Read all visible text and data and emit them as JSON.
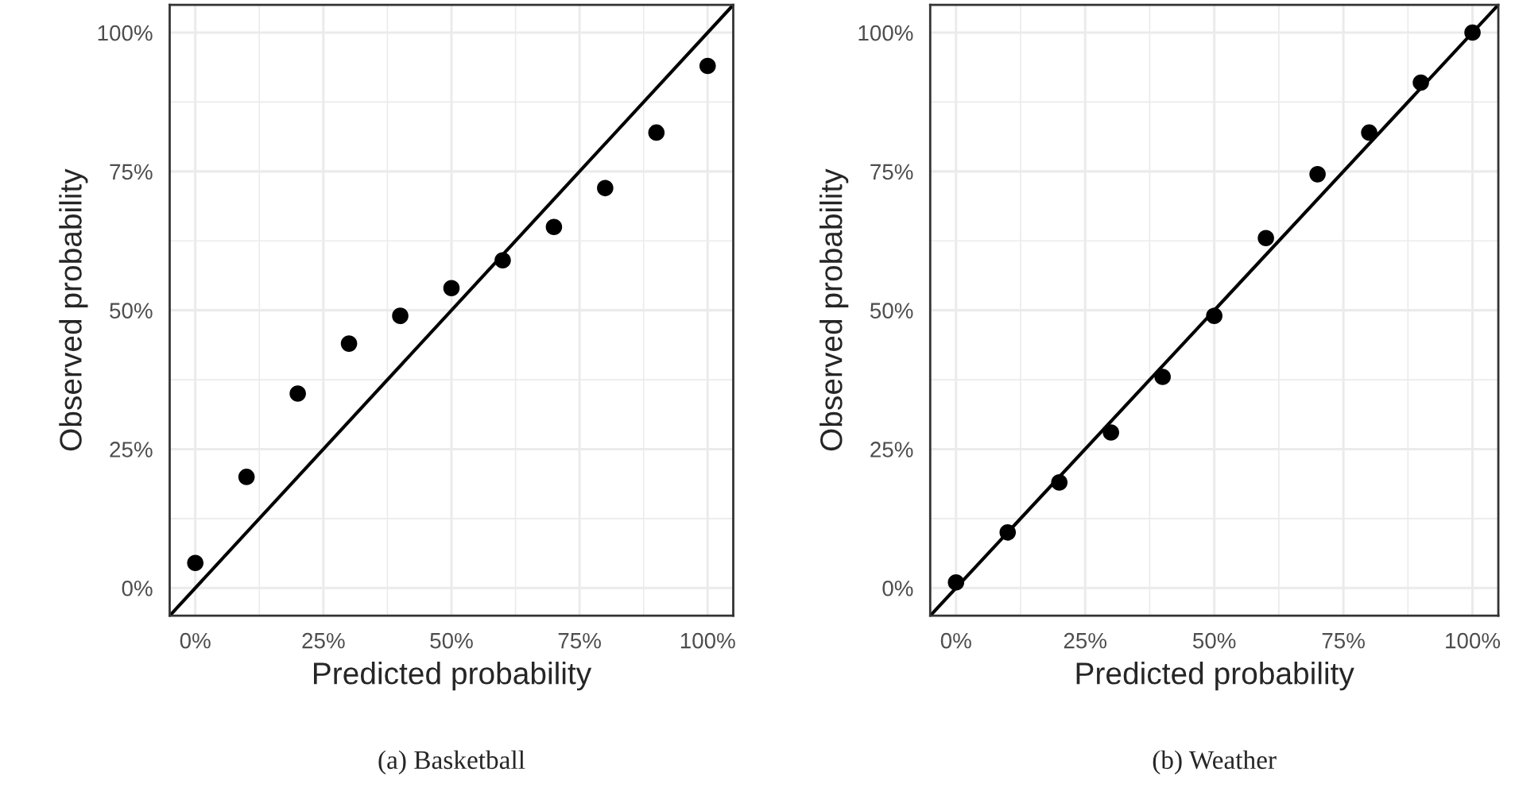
{
  "chart_data": [
    {
      "type": "scatter",
      "xlabel": "Predicted probability",
      "ylabel": "Observed probability",
      "annotations": [
        "(a) Basketball"
      ],
      "xlim": [
        -5,
        105
      ],
      "ylim": [
        -5,
        105
      ],
      "xticks": [
        {
          "value": 0,
          "label": "0%"
        },
        {
          "value": 25,
          "label": "25%"
        },
        {
          "value": 50,
          "label": "50%"
        },
        {
          "value": 75,
          "label": "75%"
        },
        {
          "value": 100,
          "label": "100%"
        }
      ],
      "yticks": [
        {
          "value": 0,
          "label": "0%"
        },
        {
          "value": 25,
          "label": "25%"
        },
        {
          "value": 50,
          "label": "50%"
        },
        {
          "value": 75,
          "label": "75%"
        },
        {
          "value": 100,
          "label": "100%"
        }
      ],
      "grid": true,
      "legend": false,
      "series": [
        {
          "marker": "circle",
          "color": "#000000",
          "x": [
            0,
            10,
            20,
            30,
            40,
            50,
            60,
            70,
            80,
            90,
            100
          ],
          "values": [
            4.5,
            20,
            35,
            44,
            49,
            54,
            59,
            65,
            72,
            82,
            94
          ]
        },
        {
          "type": "line",
          "color": "#000000",
          "x": [
            -5,
            105
          ],
          "values": [
            -5,
            105
          ]
        }
      ]
    },
    {
      "type": "scatter",
      "xlabel": "Predicted probability",
      "ylabel": "Observed probability",
      "annotations": [
        "(b) Weather"
      ],
      "xlim": [
        -5,
        105
      ],
      "ylim": [
        -5,
        105
      ],
      "xticks": [
        {
          "value": 0,
          "label": "0%"
        },
        {
          "value": 25,
          "label": "25%"
        },
        {
          "value": 50,
          "label": "50%"
        },
        {
          "value": 75,
          "label": "75%"
        },
        {
          "value": 100,
          "label": "100%"
        }
      ],
      "yticks": [
        {
          "value": 0,
          "label": "0%"
        },
        {
          "value": 25,
          "label": "25%"
        },
        {
          "value": 50,
          "label": "50%"
        },
        {
          "value": 75,
          "label": "75%"
        },
        {
          "value": 100,
          "label": "100%"
        }
      ],
      "grid": true,
      "legend": false,
      "series": [
        {
          "marker": "circle",
          "color": "#000000",
          "x": [
            0,
            10,
            20,
            30,
            40,
            50,
            60,
            70,
            80,
            90,
            100
          ],
          "values": [
            1,
            10,
            19,
            28,
            38,
            49,
            63,
            74.5,
            82,
            91,
            100
          ]
        },
        {
          "type": "line",
          "color": "#000000",
          "x": [
            -5,
            105
          ],
          "values": [
            -5,
            105
          ]
        }
      ]
    }
  ]
}
